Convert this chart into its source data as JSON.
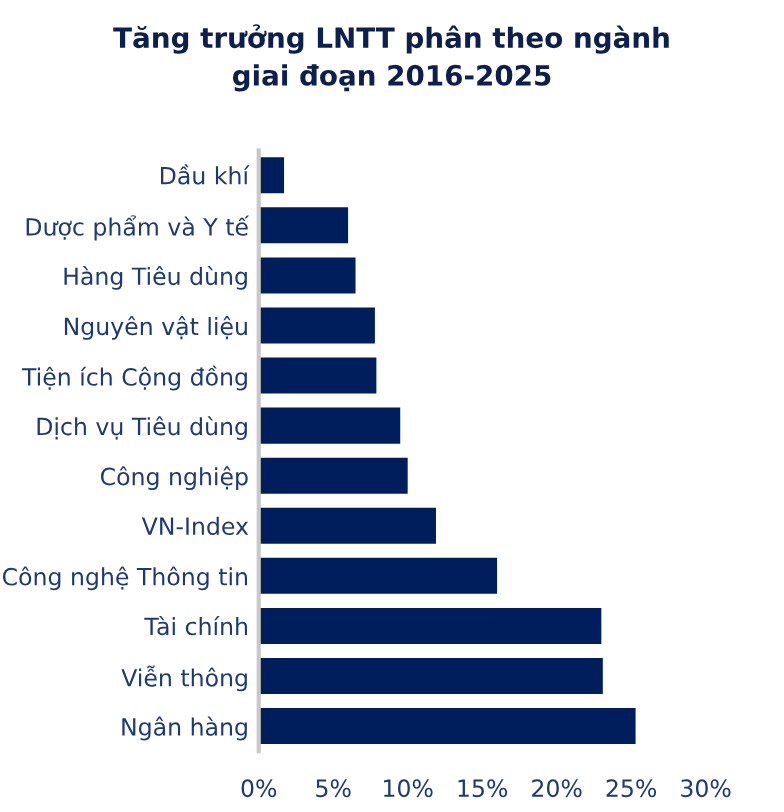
{
  "chart_data": {
    "type": "bar",
    "orientation": "horizontal",
    "title": "Tăng trưởng LNTT phân theo ngành\ngiai đoạn 2016-2025",
    "categories": [
      "Dầu khí",
      "Dược phẩm và Y tế",
      "Hàng Tiêu dùng",
      "Nguyên vật liệu",
      "Tiện ích Cộng đồng",
      "Dịch vụ Tiêu dùng",
      "Công nghiệp",
      "VN-Index",
      "Công nghệ Thông tin",
      "Tài chính",
      "Viễn thông",
      "Ngân hàng"
    ],
    "values": [
      1.7,
      6.0,
      6.5,
      7.8,
      7.9,
      9.5,
      10.0,
      11.9,
      16.0,
      23.0,
      23.1,
      25.3
    ],
    "color": "#001e5c",
    "xlim": [
      0,
      30
    ],
    "xticks": [
      {
        "value": 0,
        "label": "0%"
      },
      {
        "value": 5,
        "label": "5%"
      },
      {
        "value": 10,
        "label": "10%"
      },
      {
        "value": 15,
        "label": "15%"
      },
      {
        "value": 20,
        "label": "20%"
      },
      {
        "value": 25,
        "label": "25%"
      },
      {
        "value": 30,
        "label": "30%"
      }
    ],
    "grid": false,
    "legend": false
  }
}
